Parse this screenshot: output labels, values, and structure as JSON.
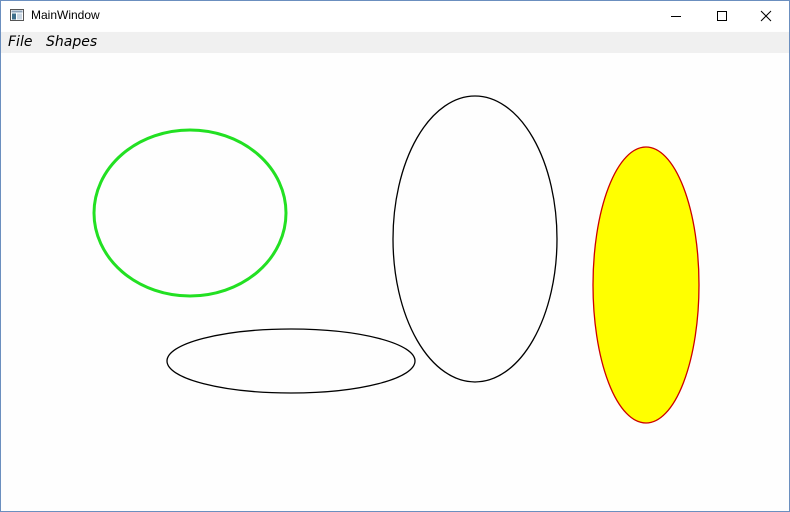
{
  "window": {
    "title": "MainWindow",
    "app_icon": "window-app-icon",
    "controls": {
      "minimize_icon": "minimize-icon",
      "maximize_icon": "maximize-icon",
      "close_icon": "close-icon"
    }
  },
  "menu": {
    "file_label": "File",
    "shapes_label": "Shapes"
  },
  "canvas": {
    "shapes": [
      {
        "type": "ellipse",
        "name": "green-ellipse",
        "stroke": "#22e022",
        "fill": "none"
      },
      {
        "type": "ellipse",
        "name": "wide-black-ellipse",
        "stroke": "#000000",
        "fill": "none"
      },
      {
        "type": "ellipse",
        "name": "tall-black-ellipse",
        "stroke": "#000000",
        "fill": "none"
      },
      {
        "type": "ellipse",
        "name": "yellow-ellipse",
        "stroke": "#cc0000",
        "fill": "#ffff00"
      }
    ]
  }
}
